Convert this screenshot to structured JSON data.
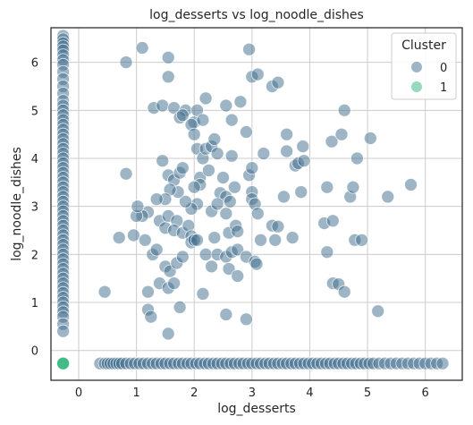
{
  "chart_data": {
    "type": "scatter",
    "title": "log_desserts vs log_noodle_dishes",
    "xlabel": "log_desserts",
    "ylabel": "log_noodle_dishes",
    "xlim": [
      -0.48,
      6.64
    ],
    "ylim": [
      -0.62,
      6.72
    ],
    "xticks": [
      0,
      1,
      2,
      3,
      4,
      5,
      6
    ],
    "yticks": [
      0,
      1,
      2,
      3,
      4,
      5,
      6
    ],
    "grid": true,
    "legend": {
      "title": "Cluster",
      "position": "top-right"
    },
    "series": [
      {
        "name": "0",
        "color": "#3d6b8c",
        "points": [
          [
            -0.27,
            6.55
          ],
          [
            -0.27,
            6.48
          ],
          [
            -0.27,
            6.4
          ],
          [
            -0.27,
            6.33
          ],
          [
            -0.27,
            6.25
          ],
          [
            -0.27,
            6.15
          ],
          [
            -0.27,
            6.05
          ],
          [
            -0.27,
            5.95
          ],
          [
            -0.27,
            5.8
          ],
          [
            -0.27,
            5.65
          ],
          [
            -0.27,
            5.5
          ],
          [
            -0.27,
            5.35
          ],
          [
            -0.27,
            5.2
          ],
          [
            -0.27,
            5.1
          ],
          [
            -0.27,
            5.0
          ],
          [
            -0.27,
            4.9
          ],
          [
            -0.27,
            4.8
          ],
          [
            -0.27,
            4.7
          ],
          [
            -0.27,
            4.6
          ],
          [
            -0.27,
            4.5
          ],
          [
            -0.27,
            4.4
          ],
          [
            -0.27,
            4.3
          ],
          [
            -0.27,
            4.2
          ],
          [
            -0.27,
            4.1
          ],
          [
            -0.27,
            4.0
          ],
          [
            -0.27,
            3.9
          ],
          [
            -0.27,
            3.8
          ],
          [
            -0.27,
            3.7
          ],
          [
            -0.27,
            3.6
          ],
          [
            -0.27,
            3.5
          ],
          [
            -0.27,
            3.4
          ],
          [
            -0.27,
            3.3
          ],
          [
            -0.27,
            3.2
          ],
          [
            -0.27,
            3.1
          ],
          [
            -0.27,
            3.0
          ],
          [
            -0.27,
            2.9
          ],
          [
            -0.27,
            2.8
          ],
          [
            -0.27,
            2.7
          ],
          [
            -0.27,
            2.6
          ],
          [
            -0.27,
            2.5
          ],
          [
            -0.27,
            2.4
          ],
          [
            -0.27,
            2.3
          ],
          [
            -0.27,
            2.2
          ],
          [
            -0.27,
            2.1
          ],
          [
            -0.27,
            2.0
          ],
          [
            -0.27,
            1.9
          ],
          [
            -0.27,
            1.8
          ],
          [
            -0.27,
            1.7
          ],
          [
            -0.27,
            1.6
          ],
          [
            -0.27,
            1.5
          ],
          [
            -0.27,
            1.4
          ],
          [
            -0.27,
            1.3
          ],
          [
            -0.27,
            1.2
          ],
          [
            -0.27,
            1.1
          ],
          [
            -0.27,
            1.0
          ],
          [
            -0.27,
            0.9
          ],
          [
            -0.27,
            0.8
          ],
          [
            -0.27,
            0.7
          ],
          [
            -0.27,
            0.55
          ],
          [
            -0.27,
            0.4
          ],
          [
            0.37,
            -0.27
          ],
          [
            0.45,
            -0.27
          ],
          [
            0.5,
            -0.27
          ],
          [
            0.55,
            -0.27
          ],
          [
            0.6,
            -0.27
          ],
          [
            0.65,
            -0.27
          ],
          [
            0.7,
            -0.27
          ],
          [
            0.75,
            -0.27
          ],
          [
            0.82,
            -0.27
          ],
          [
            0.9,
            -0.27
          ],
          [
            0.97,
            -0.27
          ],
          [
            1.05,
            -0.27
          ],
          [
            1.12,
            -0.27
          ],
          [
            1.2,
            -0.27
          ],
          [
            1.28,
            -0.27
          ],
          [
            1.35,
            -0.27
          ],
          [
            1.43,
            -0.27
          ],
          [
            1.5,
            -0.27
          ],
          [
            1.58,
            -0.27
          ],
          [
            1.65,
            -0.27
          ],
          [
            1.73,
            -0.27
          ],
          [
            1.8,
            -0.27
          ],
          [
            1.88,
            -0.27
          ],
          [
            1.95,
            -0.27
          ],
          [
            2.03,
            -0.27
          ],
          [
            2.1,
            -0.27
          ],
          [
            2.18,
            -0.27
          ],
          [
            2.25,
            -0.27
          ],
          [
            2.33,
            -0.27
          ],
          [
            2.4,
            -0.27
          ],
          [
            2.48,
            -0.27
          ],
          [
            2.55,
            -0.27
          ],
          [
            2.63,
            -0.27
          ],
          [
            2.7,
            -0.27
          ],
          [
            2.78,
            -0.27
          ],
          [
            2.85,
            -0.27
          ],
          [
            2.93,
            -0.27
          ],
          [
            3.0,
            -0.27
          ],
          [
            3.08,
            -0.27
          ],
          [
            3.15,
            -0.27
          ],
          [
            3.23,
            -0.27
          ],
          [
            3.3,
            -0.27
          ],
          [
            3.38,
            -0.27
          ],
          [
            3.45,
            -0.27
          ],
          [
            3.53,
            -0.27
          ],
          [
            3.6,
            -0.27
          ],
          [
            3.68,
            -0.27
          ],
          [
            3.75,
            -0.27
          ],
          [
            3.83,
            -0.27
          ],
          [
            3.9,
            -0.27
          ],
          [
            3.98,
            -0.27
          ],
          [
            4.05,
            -0.27
          ],
          [
            4.13,
            -0.27
          ],
          [
            4.2,
            -0.27
          ],
          [
            4.28,
            -0.27
          ],
          [
            4.35,
            -0.27
          ],
          [
            4.43,
            -0.27
          ],
          [
            4.5,
            -0.27
          ],
          [
            4.58,
            -0.27
          ],
          [
            4.65,
            -0.27
          ],
          [
            4.73,
            -0.27
          ],
          [
            4.8,
            -0.27
          ],
          [
            4.88,
            -0.27
          ],
          [
            4.95,
            -0.27
          ],
          [
            5.03,
            -0.27
          ],
          [
            5.1,
            -0.27
          ],
          [
            5.2,
            -0.27
          ],
          [
            5.3,
            -0.27
          ],
          [
            5.4,
            -0.27
          ],
          [
            5.5,
            -0.27
          ],
          [
            5.6,
            -0.27
          ],
          [
            5.7,
            -0.27
          ],
          [
            5.8,
            -0.27
          ],
          [
            5.9,
            -0.27
          ],
          [
            6.0,
            -0.27
          ],
          [
            6.1,
            -0.27
          ],
          [
            6.2,
            -0.27
          ],
          [
            6.3,
            -0.27
          ],
          [
            0.45,
            1.22
          ],
          [
            0.82,
            6.0
          ],
          [
            1.1,
            6.3
          ],
          [
            1.55,
            6.1
          ],
          [
            1.55,
            5.7
          ],
          [
            2.95,
            6.27
          ],
          [
            3.0,
            5.7
          ],
          [
            3.1,
            5.75
          ],
          [
            3.35,
            5.5
          ],
          [
            3.45,
            5.58
          ],
          [
            1.3,
            5.05
          ],
          [
            1.45,
            5.1
          ],
          [
            1.65,
            5.05
          ],
          [
            1.85,
            5.0
          ],
          [
            2.0,
            4.75
          ],
          [
            2.05,
            5.0
          ],
          [
            2.15,
            4.8
          ],
          [
            2.2,
            5.25
          ],
          [
            2.55,
            5.1
          ],
          [
            2.65,
            4.8
          ],
          [
            2.8,
            5.18
          ],
          [
            1.75,
            4.85
          ],
          [
            1.8,
            4.9
          ],
          [
            1.95,
            4.7
          ],
          [
            2.0,
            4.5
          ],
          [
            2.05,
            4.2
          ],
          [
            2.15,
            4.0
          ],
          [
            2.2,
            4.2
          ],
          [
            2.3,
            4.25
          ],
          [
            2.35,
            4.4
          ],
          [
            2.4,
            4.1
          ],
          [
            2.65,
            4.05
          ],
          [
            2.9,
            4.55
          ],
          [
            3.2,
            4.1
          ],
          [
            3.6,
            4.5
          ],
          [
            3.6,
            4.15
          ],
          [
            3.75,
            3.85
          ],
          [
            3.8,
            3.9
          ],
          [
            3.88,
            4.25
          ],
          [
            3.9,
            3.95
          ],
          [
            4.38,
            4.35
          ],
          [
            4.55,
            4.5
          ],
          [
            4.6,
            5.0
          ],
          [
            5.05,
            4.42
          ],
          [
            4.82,
            4.0
          ],
          [
            1.45,
            3.95
          ],
          [
            1.55,
            3.65
          ],
          [
            1.65,
            3.55
          ],
          [
            1.75,
            3.7
          ],
          [
            1.8,
            3.8
          ],
          [
            2.1,
            3.6
          ],
          [
            2.25,
            3.75
          ],
          [
            2.5,
            3.6
          ],
          [
            2.7,
            3.4
          ],
          [
            2.95,
            3.65
          ],
          [
            3.0,
            3.8
          ],
          [
            3.0,
            3.3
          ],
          [
            2.45,
            3.28
          ],
          [
            2.55,
            3.2
          ],
          [
            2.62,
            3.1
          ],
          [
            2.1,
            3.45
          ],
          [
            2.0,
            3.4
          ],
          [
            2.05,
            3.05
          ],
          [
            1.95,
            2.95
          ],
          [
            1.85,
            3.1
          ],
          [
            1.72,
            3.3
          ],
          [
            1.58,
            3.35
          ],
          [
            1.5,
            3.15
          ],
          [
            1.35,
            3.15
          ],
          [
            1.2,
            2.88
          ],
          [
            1.1,
            2.8
          ],
          [
            1.0,
            2.8
          ],
          [
            1.02,
            3.0
          ],
          [
            0.82,
            3.68
          ],
          [
            1.4,
            2.7
          ],
          [
            1.5,
            2.55
          ],
          [
            1.55,
            2.8
          ],
          [
            1.7,
            2.7
          ],
          [
            1.65,
            2.5
          ],
          [
            1.8,
            2.45
          ],
          [
            1.9,
            2.6
          ],
          [
            1.95,
            2.38
          ],
          [
            2.3,
            2.9
          ],
          [
            2.4,
            3.05
          ],
          [
            2.55,
            2.85
          ],
          [
            2.6,
            2.45
          ],
          [
            2.72,
            2.6
          ],
          [
            2.75,
            2.48
          ],
          [
            3.0,
            3.15
          ],
          [
            3.05,
            3.05
          ],
          [
            3.1,
            2.85
          ],
          [
            3.35,
            2.6
          ],
          [
            3.55,
            3.2
          ],
          [
            3.85,
            3.3
          ],
          [
            4.3,
            3.4
          ],
          [
            4.7,
            3.2
          ],
          [
            4.75,
            3.4
          ],
          [
            5.35,
            3.2
          ],
          [
            5.75,
            3.45
          ],
          [
            0.7,
            2.35
          ],
          [
            0.95,
            2.4
          ],
          [
            1.15,
            2.3
          ],
          [
            1.28,
            2.0
          ],
          [
            1.35,
            2.1
          ],
          [
            1.5,
            1.75
          ],
          [
            1.58,
            1.65
          ],
          [
            1.7,
            1.82
          ],
          [
            1.8,
            1.95
          ],
          [
            1.95,
            2.25
          ],
          [
            2.0,
            2.3
          ],
          [
            2.05,
            2.3
          ],
          [
            2.2,
            2.0
          ],
          [
            2.35,
            2.35
          ],
          [
            2.4,
            2.0
          ],
          [
            2.55,
            1.95
          ],
          [
            2.65,
            2.05
          ],
          [
            2.75,
            2.1
          ],
          [
            2.3,
            1.75
          ],
          [
            2.6,
            1.7
          ],
          [
            2.75,
            1.55
          ],
          [
            2.9,
            1.95
          ],
          [
            3.05,
            1.85
          ],
          [
            3.08,
            1.8
          ],
          [
            3.15,
            2.3
          ],
          [
            3.4,
            2.3
          ],
          [
            3.45,
            2.58
          ],
          [
            3.7,
            2.35
          ],
          [
            4.25,
            2.65
          ],
          [
            4.4,
            2.7
          ],
          [
            4.3,
            2.05
          ],
          [
            4.78,
            2.3
          ],
          [
            4.9,
            2.3
          ],
          [
            4.4,
            1.4
          ],
          [
            4.5,
            1.38
          ],
          [
            4.6,
            1.22
          ],
          [
            1.4,
            1.4
          ],
          [
            1.55,
            1.3
          ],
          [
            1.65,
            1.4
          ],
          [
            1.2,
            1.22
          ],
          [
            1.2,
            0.85
          ],
          [
            1.25,
            0.7
          ],
          [
            1.75,
            0.9
          ],
          [
            2.15,
            1.18
          ],
          [
            1.55,
            0.35
          ],
          [
            2.55,
            0.75
          ],
          [
            2.9,
            0.65
          ],
          [
            5.18,
            0.82
          ]
        ]
      },
      {
        "name": "1",
        "color": "#2fb47c",
        "points": [
          [
            -0.27,
            -0.27
          ]
        ]
      }
    ]
  }
}
